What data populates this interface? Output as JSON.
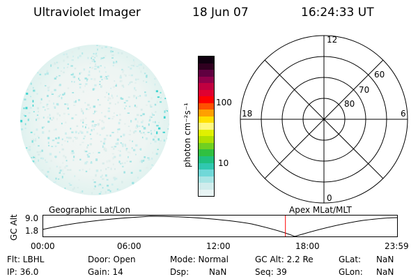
{
  "header": {
    "instrument": "Ultraviolet Imager",
    "date": "18 Jun 07",
    "time": "16:24:33 UT"
  },
  "colorbar": {
    "unit_label": "photon cm⁻²s⁻¹",
    "ticks": [
      "100",
      "10"
    ],
    "colors": [
      "#e8f4f4",
      "#d0ecec",
      "#a8e4e4",
      "#70d8d8",
      "#30c8b0",
      "#20c080",
      "#30c040",
      "#70d020",
      "#b0e000",
      "#e0f000",
      "#fff880",
      "#ffe000",
      "#ffa000",
      "#ff5000",
      "#ff0000",
      "#e00030",
      "#c00040",
      "#90004a",
      "#600040",
      "#300020",
      "#100010"
    ]
  },
  "polar_grid": {
    "mlt_labels": {
      "top": "12",
      "left": "18",
      "right": "6",
      "bottom": "0"
    },
    "lat_labels": [
      "60",
      "70",
      "80"
    ]
  },
  "timeline": {
    "label_left": "Geographic Lat/Lon",
    "label_right": "Apex MLat/MLT",
    "y_axis_label": "GC Alt",
    "y_ticks": [
      "9.0",
      "1.8"
    ],
    "x_ticks": [
      "00:00",
      "06:00",
      "12:00",
      "18:00",
      "23:59"
    ],
    "current_time_marker": "16:24",
    "marker_color": "#ff0000"
  },
  "status": {
    "flt": "Flt: LBHL",
    "door": "Door: Open",
    "mode": "Mode: Normal",
    "gc_alt": "GC Alt: 2.2 Re",
    "glat_label": "GLat:",
    "glat_value": "NaN",
    "ip": "IP: 36.0",
    "gain": "Gain: 14",
    "dsp_label": "Dsp:",
    "dsp_value": "NaN",
    "seq": "Seq: 39",
    "glon_label": "GLon:",
    "glon_value": "NaN"
  }
}
